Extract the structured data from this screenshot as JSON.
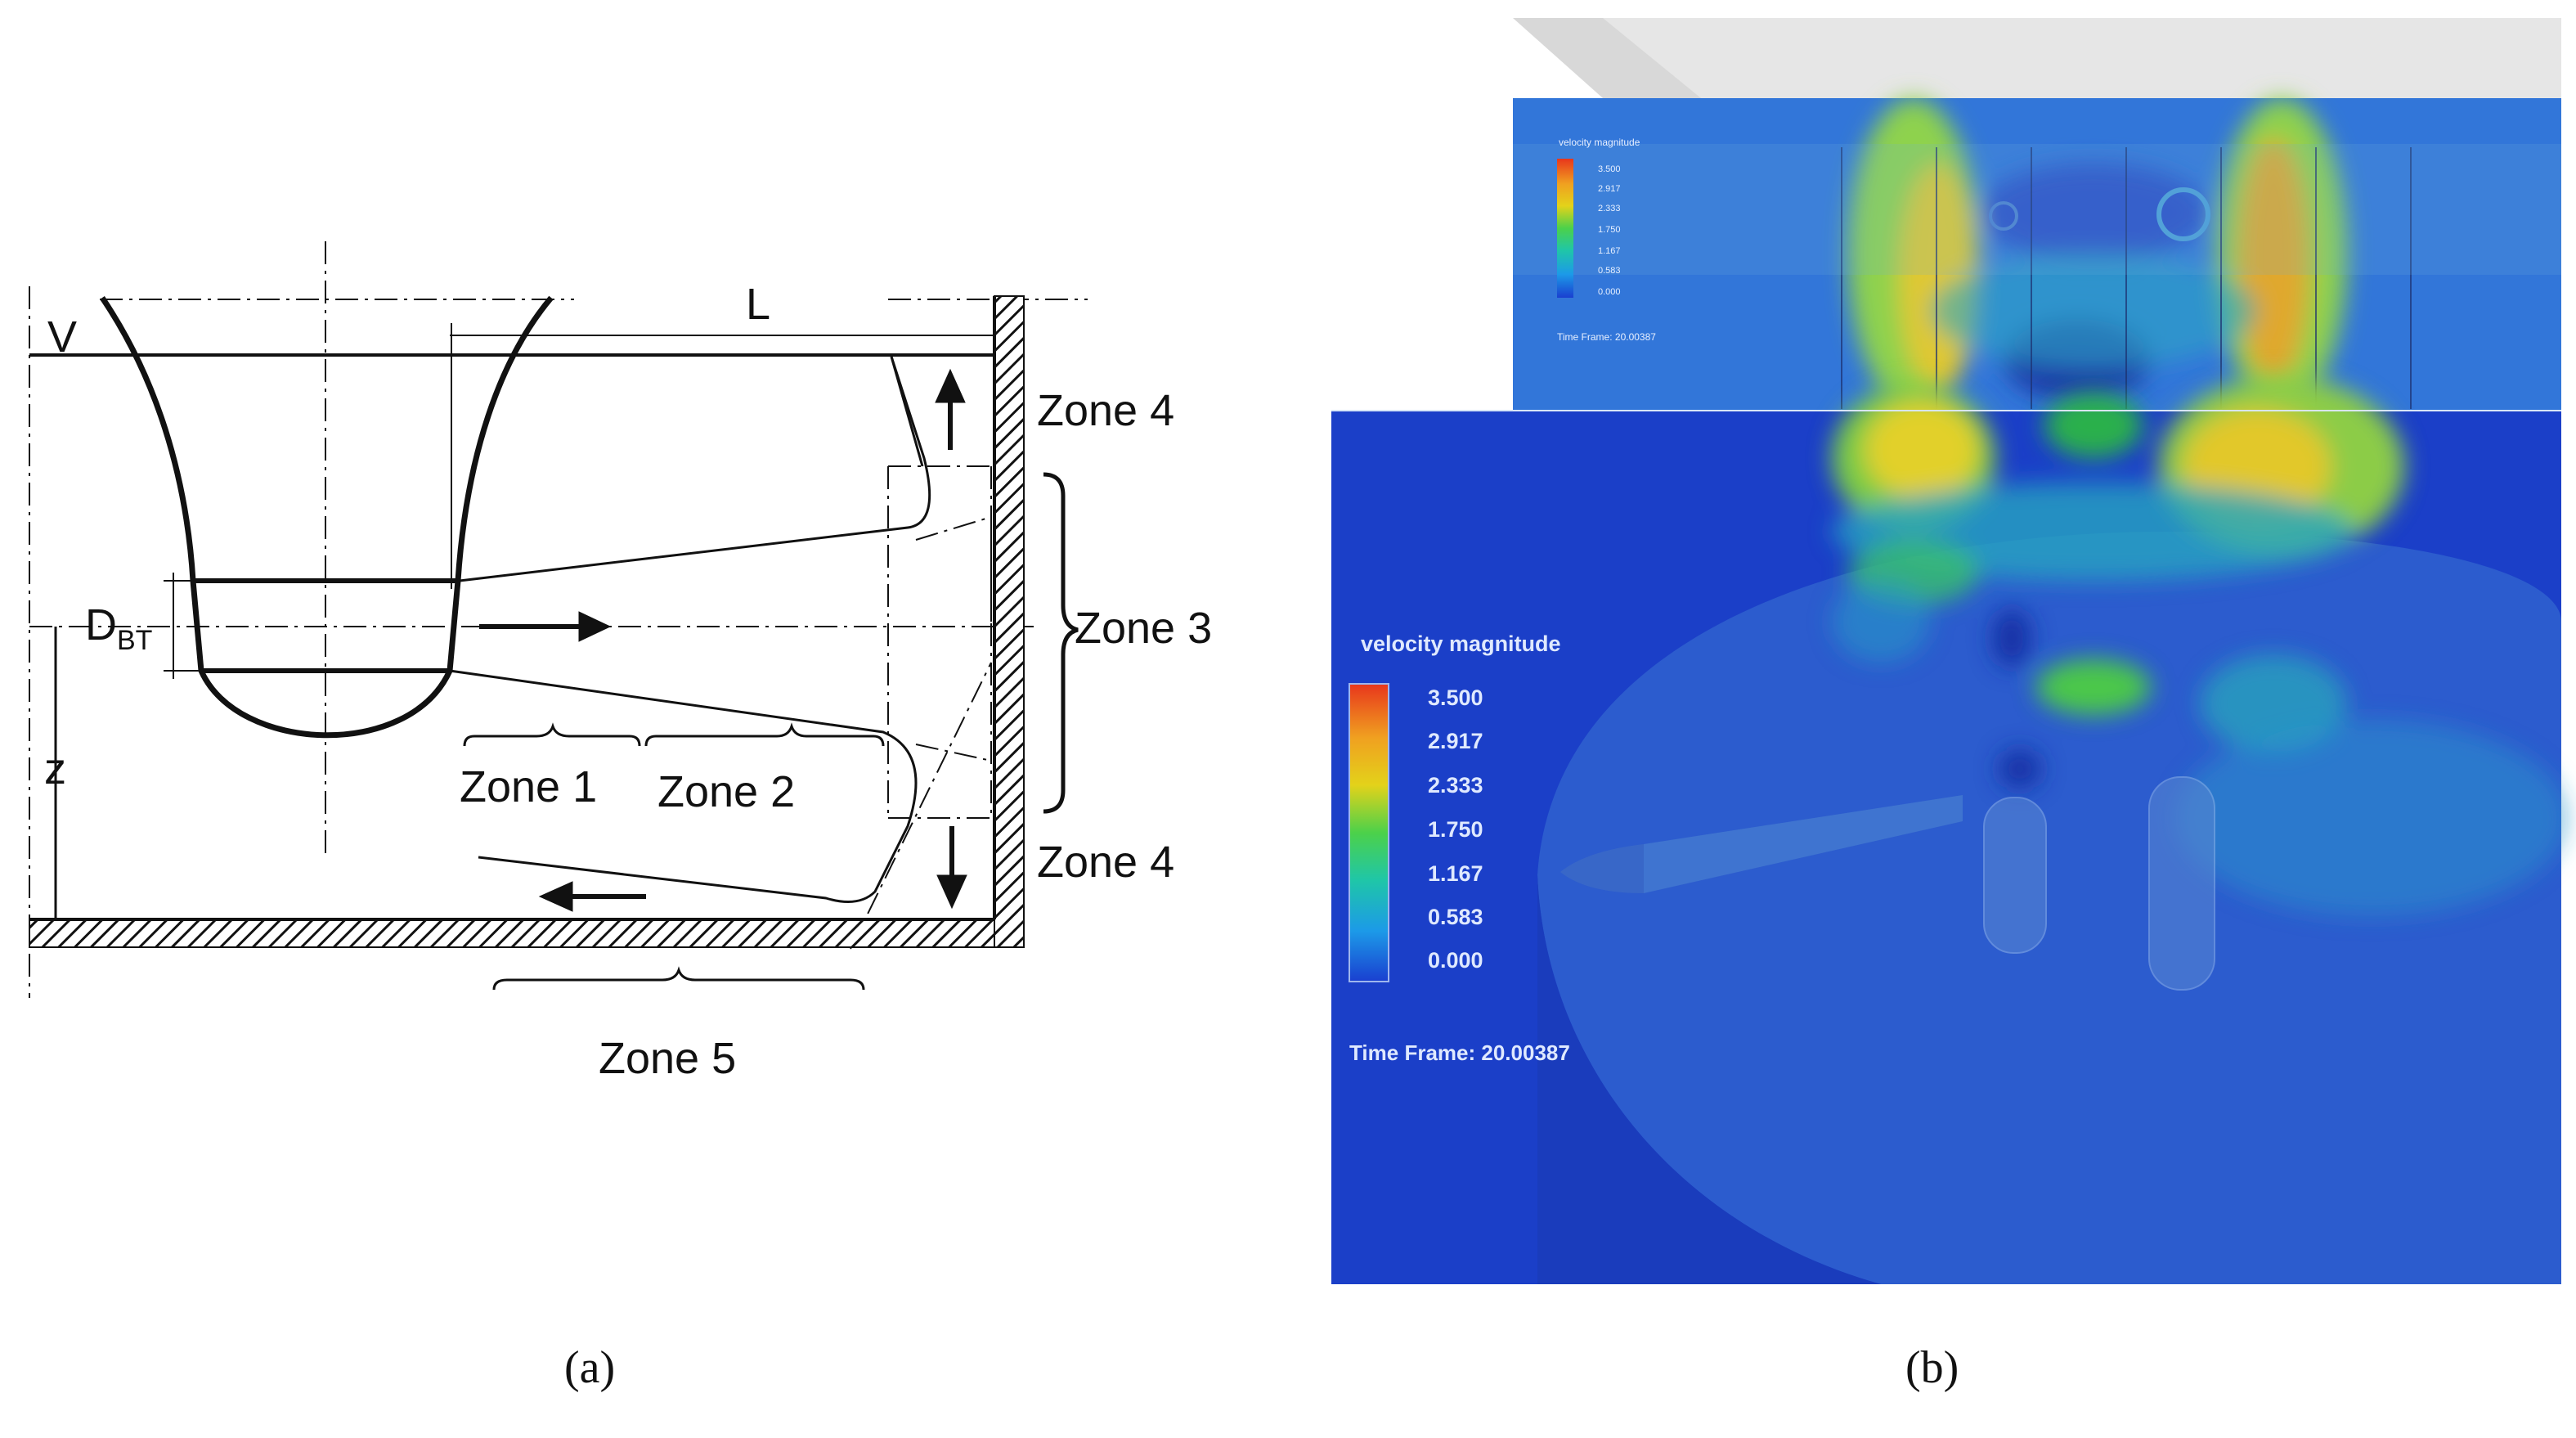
{
  "panel_a": {
    "labels": {
      "v": "V",
      "l": "L",
      "z": "z",
      "dbt_main": "D",
      "dbt_sub": "BT",
      "zone1": "Zone 1",
      "zone2": "Zone 2",
      "zone3": "Zone 3",
      "zone4_top": "Zone 4",
      "zone4_bottom": "Zone 4",
      "zone5": "Zone 5"
    },
    "caption": "(a)"
  },
  "panel_b": {
    "small_legend": {
      "title": "velocity magnitude",
      "ticks": [
        "3.500",
        "2.917",
        "2.333",
        "1.750",
        "1.167",
        "0.583",
        "0.000"
      ],
      "time_frame_label": "Time Frame:",
      "time_frame_value": "20.00387"
    },
    "legend": {
      "title": "velocity magnitude",
      "ticks": [
        "3.500",
        "2.917",
        "2.333",
        "1.750",
        "1.167",
        "0.583",
        "0.000"
      ],
      "time_frame_label": "Time Frame:",
      "time_frame_value": "20.00387"
    },
    "colors": {
      "low": "#1a3fd0",
      "mid": "#22c47a",
      "high_mid": "#e3d21a",
      "high": "#e8361c"
    },
    "caption": "(b)"
  }
}
